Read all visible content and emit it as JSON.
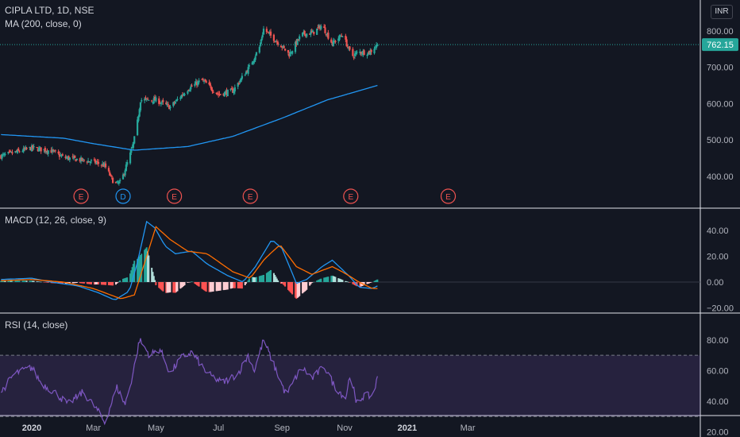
{
  "header": {
    "symbol_line": "CIPLA LTD, 1D, NSE",
    "ma_legend": "MA (200, close, 0)",
    "currency": "INR"
  },
  "macd_legend": "MACD (12, 26, close, 9)",
  "rsi_legend": "RSI (14, close)",
  "price_badge": "762.15",
  "colors": {
    "background": "#131722",
    "up": "#26a69a",
    "down": "#ef5350",
    "ma_line": "#2196f3",
    "macd_line": "#2196f3",
    "signal_line": "#ff6d00",
    "hist_up_strong": "#26a69a",
    "hist_up_weak": "#b2dfdb",
    "hist_down_strong": "#ff5252",
    "hist_down_weak": "#ffcdd2",
    "rsi_line": "#7e57c2",
    "rsi_band": "#7e57c2"
  },
  "chart_data": [
    {
      "type": "candlestick",
      "title": "CIPLA LTD, 1D, NSE",
      "x_ticks": [
        "2020",
        "Mar",
        "May",
        "Jul",
        "Sep",
        "Nov",
        "2021",
        "Mar"
      ],
      "y_ticks": [
        "400.00",
        "500.00",
        "600.00",
        "700.00",
        "800.00"
      ],
      "ylim": [
        330,
        830
      ],
      "last_price": 762.15,
      "close_anchors": [
        [
          "2019-12-01",
          455
        ],
        [
          "2020-01-01",
          478
        ],
        [
          "2020-01-20",
          470
        ],
        [
          "2020-02-01",
          452
        ],
        [
          "2020-02-18",
          445
        ],
        [
          "2020-03-01",
          440
        ],
        [
          "2020-03-12",
          430
        ],
        [
          "2020-03-22",
          378
        ],
        [
          "2020-03-28",
          385
        ],
        [
          "2020-04-01",
          420
        ],
        [
          "2020-04-08",
          478
        ],
        [
          "2020-04-12",
          530
        ],
        [
          "2020-04-16",
          610
        ],
        [
          "2020-05-01",
          610
        ],
        [
          "2020-05-15",
          590
        ],
        [
          "2020-06-01",
          640
        ],
        [
          "2020-06-15",
          665
        ],
        [
          "2020-07-01",
          625
        ],
        [
          "2020-07-15",
          635
        ],
        [
          "2020-07-31",
          700
        ],
        [
          "2020-08-10",
          755
        ],
        [
          "2020-08-14",
          805
        ],
        [
          "2020-08-31",
          760
        ],
        [
          "2020-09-08",
          735
        ],
        [
          "2020-09-20",
          790
        ],
        [
          "2020-10-01",
          795
        ],
        [
          "2020-10-10",
          815
        ],
        [
          "2020-10-20",
          765
        ],
        [
          "2020-10-30",
          790
        ],
        [
          "2020-11-08",
          730
        ],
        [
          "2020-11-15",
          742
        ],
        [
          "2020-11-25",
          740
        ],
        [
          "2020-12-03",
          762.15
        ]
      ],
      "ma": {
        "name": "MA (200, close, 0)",
        "anchors": [
          [
            "2019-12-01",
            515
          ],
          [
            "2020-02-01",
            505
          ],
          [
            "2020-03-01",
            490
          ],
          [
            "2020-04-10",
            472
          ],
          [
            "2020-06-01",
            482
          ],
          [
            "2020-07-15",
            510
          ],
          [
            "2020-09-01",
            560
          ],
          [
            "2020-10-15",
            610
          ],
          [
            "2020-12-03",
            650
          ]
        ]
      },
      "earnings_markers": [
        {
          "date": "2020-02-18",
          "label": "E"
        },
        {
          "date": "2020-03-30",
          "label": "D"
        },
        {
          "date": "2020-05-19",
          "label": "E"
        },
        {
          "date": "2020-08-01",
          "label": "E"
        },
        {
          "date": "2020-11-07",
          "label": "E"
        },
        {
          "date": "2021-02-10",
          "label": "E"
        }
      ]
    },
    {
      "type": "line",
      "title": "MACD (12, 26, close, 9)",
      "y_ticks": [
        "−20.00",
        "0.00",
        "20.00",
        "40.00"
      ],
      "ylim": [
        -22,
        52
      ],
      "series": [
        {
          "name": "MACD",
          "anchors": [
            [
              "2019-12-01",
              2
            ],
            [
              "2020-01-01",
              3
            ],
            [
              "2020-01-20",
              0
            ],
            [
              "2020-02-15",
              -3
            ],
            [
              "2020-03-05",
              -8
            ],
            [
              "2020-03-22",
              -14
            ],
            [
              "2020-04-05",
              -7
            ],
            [
              "2020-04-12",
              12
            ],
            [
              "2020-04-22",
              47
            ],
            [
              "2020-04-30",
              42
            ],
            [
              "2020-05-10",
              28
            ],
            [
              "2020-05-20",
              22
            ],
            [
              "2020-06-05",
              24
            ],
            [
              "2020-06-20",
              14
            ],
            [
              "2020-07-10",
              5
            ],
            [
              "2020-07-25",
              0
            ],
            [
              "2020-08-06",
              12
            ],
            [
              "2020-08-22",
              33
            ],
            [
              "2020-09-01",
              26
            ],
            [
              "2020-09-15",
              -1
            ],
            [
              "2020-09-25",
              2
            ],
            [
              "2020-10-10",
              12
            ],
            [
              "2020-10-20",
              17
            ],
            [
              "2020-11-05",
              5
            ],
            [
              "2020-11-15",
              -4
            ],
            [
              "2020-11-28",
              -5
            ],
            [
              "2020-12-03",
              -3
            ]
          ]
        },
        {
          "name": "Signal",
          "anchors": [
            [
              "2019-12-01",
              1
            ],
            [
              "2020-01-01",
              2
            ],
            [
              "2020-02-01",
              0
            ],
            [
              "2020-03-01",
              -5
            ],
            [
              "2020-03-28",
              -13
            ],
            [
              "2020-04-10",
              -10
            ],
            [
              "2020-04-22",
              20
            ],
            [
              "2020-05-01",
              43
            ],
            [
              "2020-05-15",
              33
            ],
            [
              "2020-06-01",
              24
            ],
            [
              "2020-06-20",
              22
            ],
            [
              "2020-07-15",
              8
            ],
            [
              "2020-08-01",
              3
            ],
            [
              "2020-08-15",
              18
            ],
            [
              "2020-08-30",
              29
            ],
            [
              "2020-09-15",
              12
            ],
            [
              "2020-09-30",
              6
            ],
            [
              "2020-10-20",
              12
            ],
            [
              "2020-11-01",
              7
            ],
            [
              "2020-11-15",
              0
            ],
            [
              "2020-11-28",
              -5
            ],
            [
              "2020-12-03",
              -5
            ]
          ]
        }
      ]
    },
    {
      "type": "line",
      "title": "RSI (14, close)",
      "y_ticks": [
        "20.00",
        "40.00",
        "60.00",
        "80.00"
      ],
      "ylim": [
        19,
        83
      ],
      "band": [
        30,
        70
      ],
      "series": [
        {
          "name": "RSI",
          "anchors": [
            [
              "2019-12-01",
              45
            ],
            [
              "2019-12-15",
              58
            ],
            [
              "2020-01-01",
              62
            ],
            [
              "2020-01-10",
              52
            ],
            [
              "2020-01-25",
              45
            ],
            [
              "2020-02-05",
              38
            ],
            [
              "2020-02-20",
              46
            ],
            [
              "2020-03-05",
              34
            ],
            [
              "2020-03-12",
              26
            ],
            [
              "2020-03-24",
              49
            ],
            [
              "2020-04-01",
              38
            ],
            [
              "2020-04-08",
              56
            ],
            [
              "2020-04-15",
              80
            ],
            [
              "2020-04-25",
              70
            ],
            [
              "2020-05-05",
              74
            ],
            [
              "2020-05-15",
              58
            ],
            [
              "2020-05-25",
              68
            ],
            [
              "2020-06-05",
              72
            ],
            [
              "2020-06-20",
              58
            ],
            [
              "2020-07-05",
              52
            ],
            [
              "2020-07-20",
              58
            ],
            [
              "2020-07-30",
              70
            ],
            [
              "2020-08-05",
              60
            ],
            [
              "2020-08-14",
              80
            ],
            [
              "2020-08-25",
              62
            ],
            [
              "2020-09-05",
              44
            ],
            [
              "2020-09-20",
              62
            ],
            [
              "2020-10-01",
              55
            ],
            [
              "2020-10-12",
              63
            ],
            [
              "2020-10-22",
              50
            ],
            [
              "2020-11-02",
              42
            ],
            [
              "2020-11-07",
              60
            ],
            [
              "2020-11-12",
              38
            ],
            [
              "2020-11-20",
              44
            ],
            [
              "2020-11-28",
              43
            ],
            [
              "2020-12-03",
              55
            ]
          ]
        }
      ]
    }
  ]
}
